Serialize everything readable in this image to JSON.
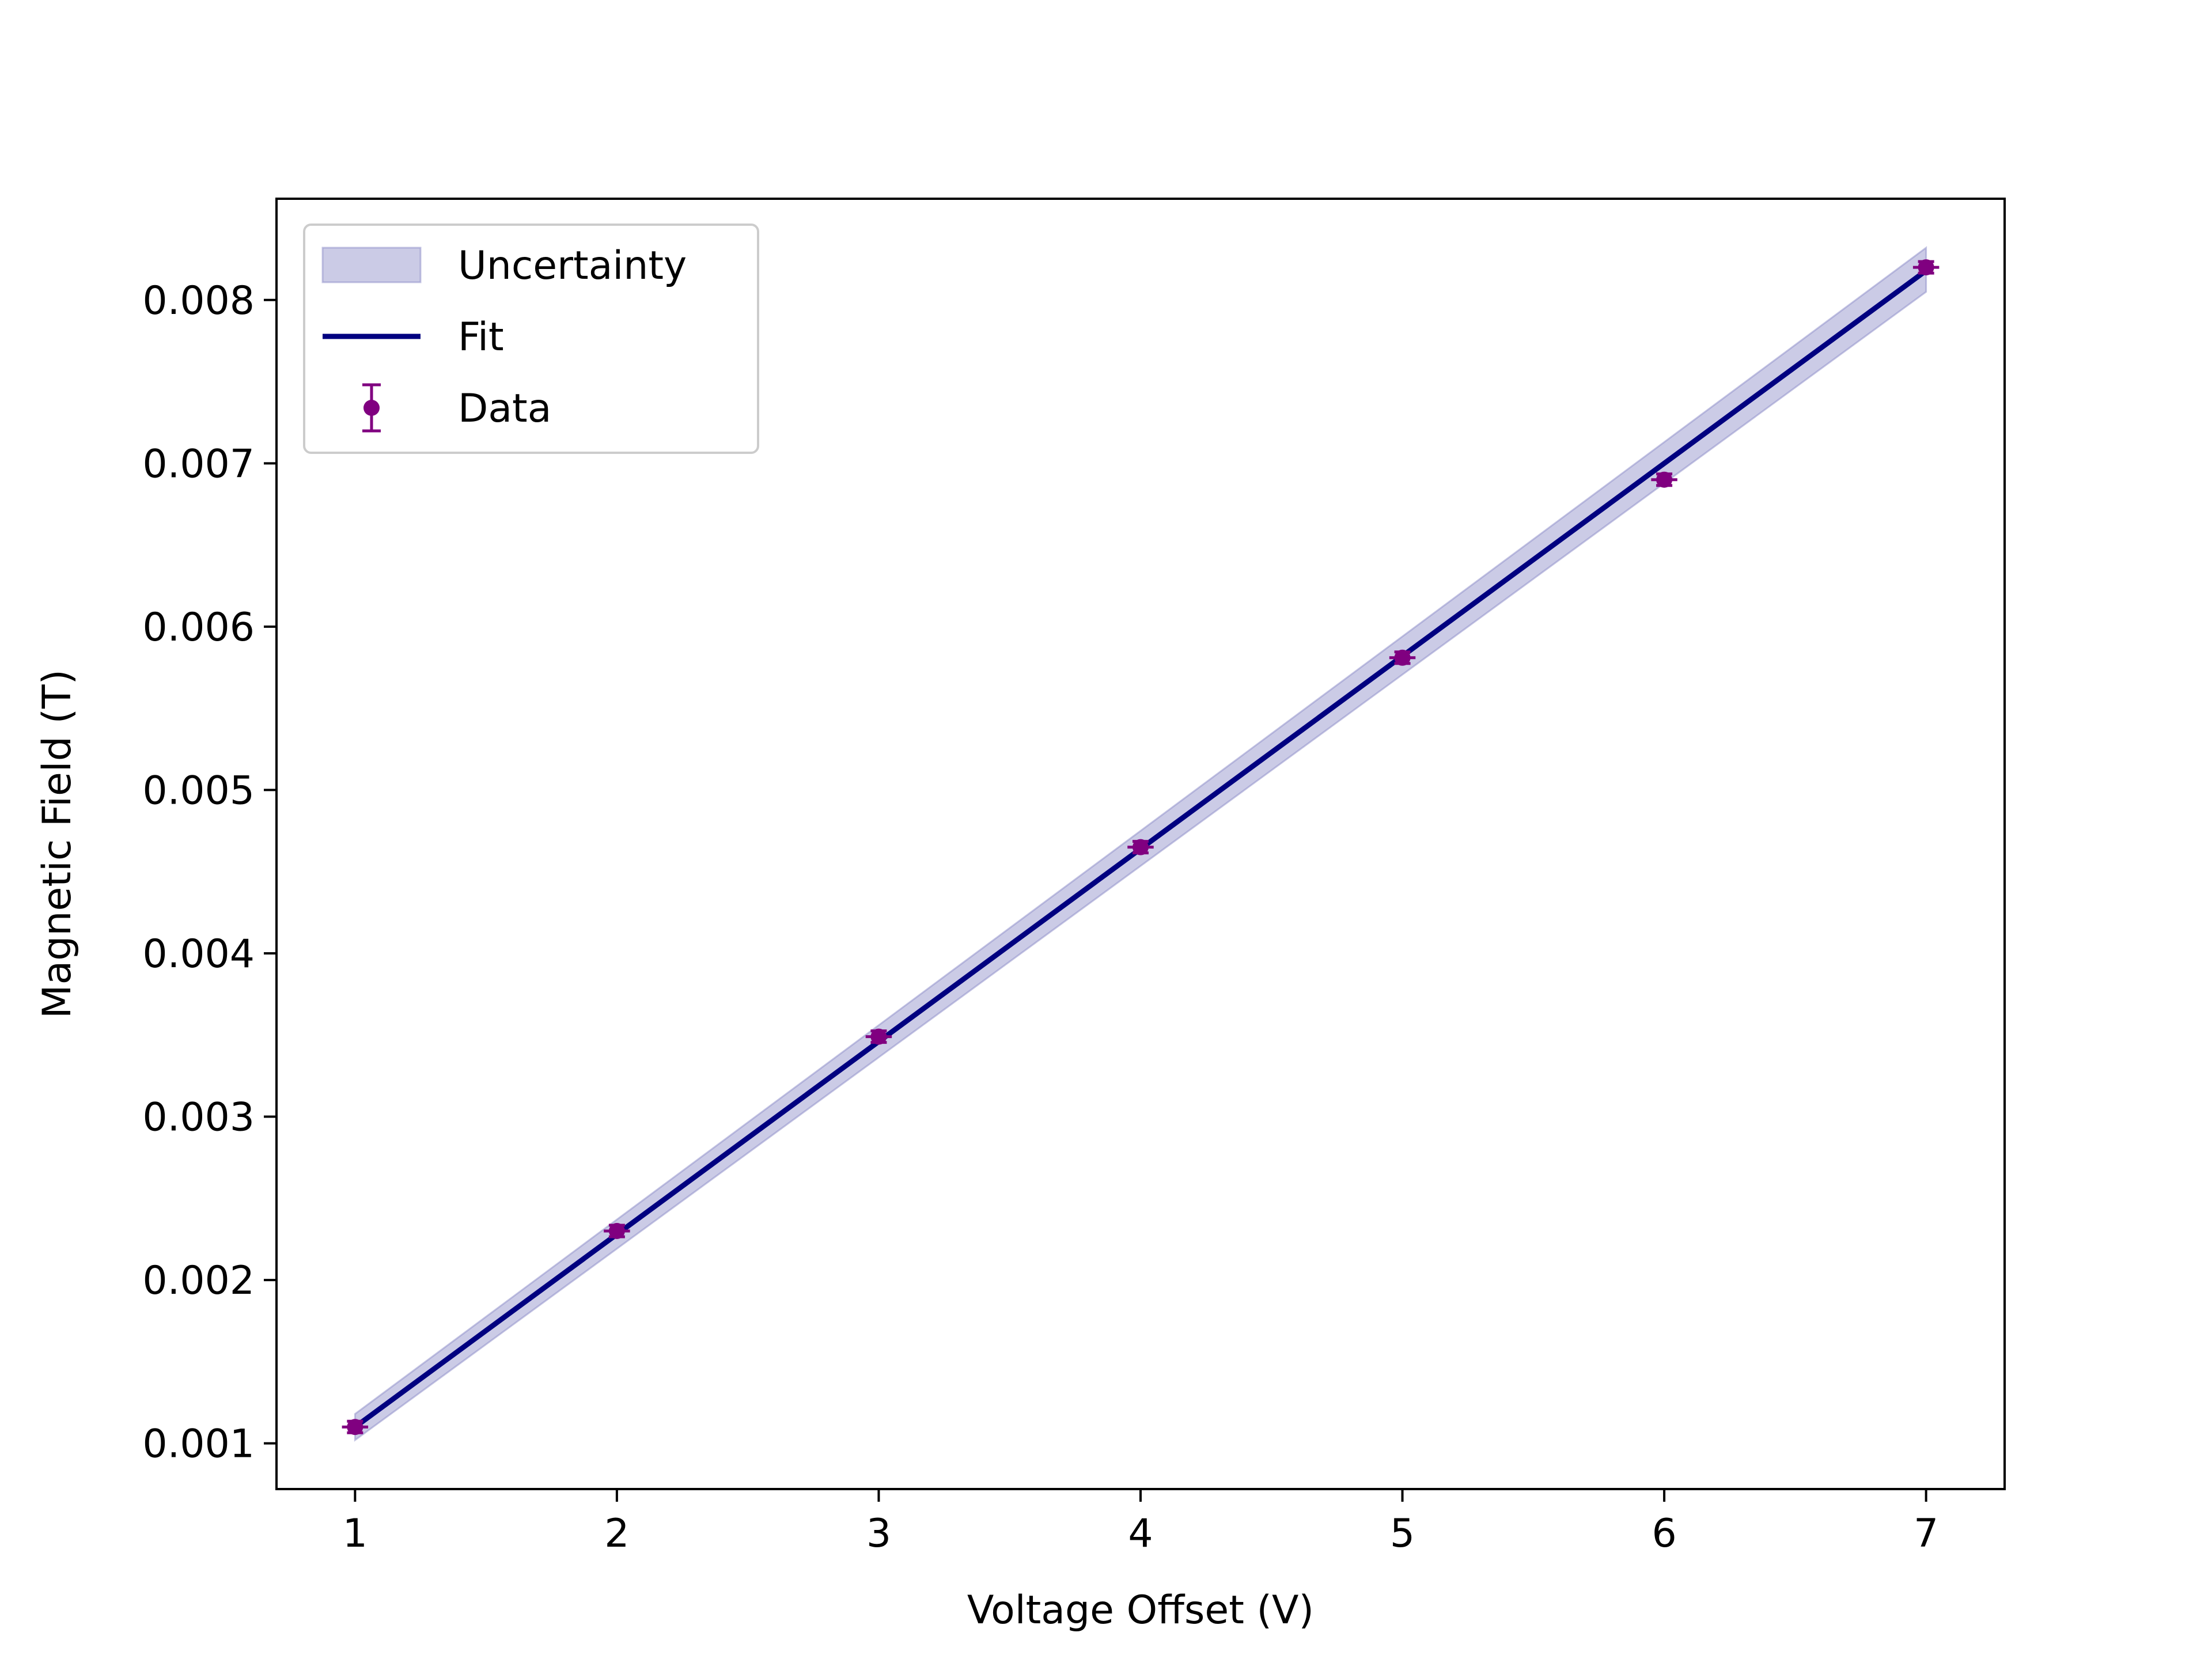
{
  "chart_data": {
    "type": "line",
    "title": "",
    "xlabel": "Voltage Offset (V)",
    "ylabel": "Magnetic Field (T)",
    "xlim": [
      0.7,
      7.3
    ],
    "ylim": [
      0.00072,
      0.00862
    ],
    "xticks": [
      1,
      2,
      3,
      4,
      5,
      6,
      7
    ],
    "xtick_labels": [
      "1",
      "2",
      "3",
      "4",
      "5",
      "6",
      "7"
    ],
    "yticks": [
      0.001,
      0.002,
      0.003,
      0.004,
      0.005,
      0.006,
      0.007,
      0.008
    ],
    "ytick_labels": [
      "0.001",
      "0.002",
      "0.003",
      "0.004",
      "0.005",
      "0.006",
      "0.007",
      "0.008"
    ],
    "grid": false,
    "legend": {
      "position": "top-left",
      "entries": [
        "Uncertainty",
        "Fit",
        "Data"
      ]
    },
    "series": [
      {
        "name": "Uncertainty",
        "kind": "band",
        "color": "#8c8cc8",
        "x": [
          1,
          7
        ],
        "lower": [
          0.00102,
          0.00805
        ],
        "upper": [
          0.00118,
          0.00832
        ]
      },
      {
        "name": "Fit",
        "kind": "line",
        "color": "#000080",
        "x": [
          1,
          7
        ],
        "y": [
          0.0011,
          0.00818
        ]
      },
      {
        "name": "Data",
        "kind": "errorbar",
        "color": "#800080",
        "x": [
          1,
          2,
          3,
          4,
          5,
          6,
          7
        ],
        "y": [
          0.0011,
          0.0023,
          0.00349,
          0.00465,
          0.00581,
          0.0069,
          0.0082
        ],
        "yerr": [
          3e-05,
          3e-05,
          3e-05,
          3e-05,
          3e-05,
          3e-05,
          3e-05
        ],
        "xerr": [
          0.05,
          0.05,
          0.05,
          0.05,
          0.05,
          0.05,
          0.05
        ]
      }
    ]
  }
}
